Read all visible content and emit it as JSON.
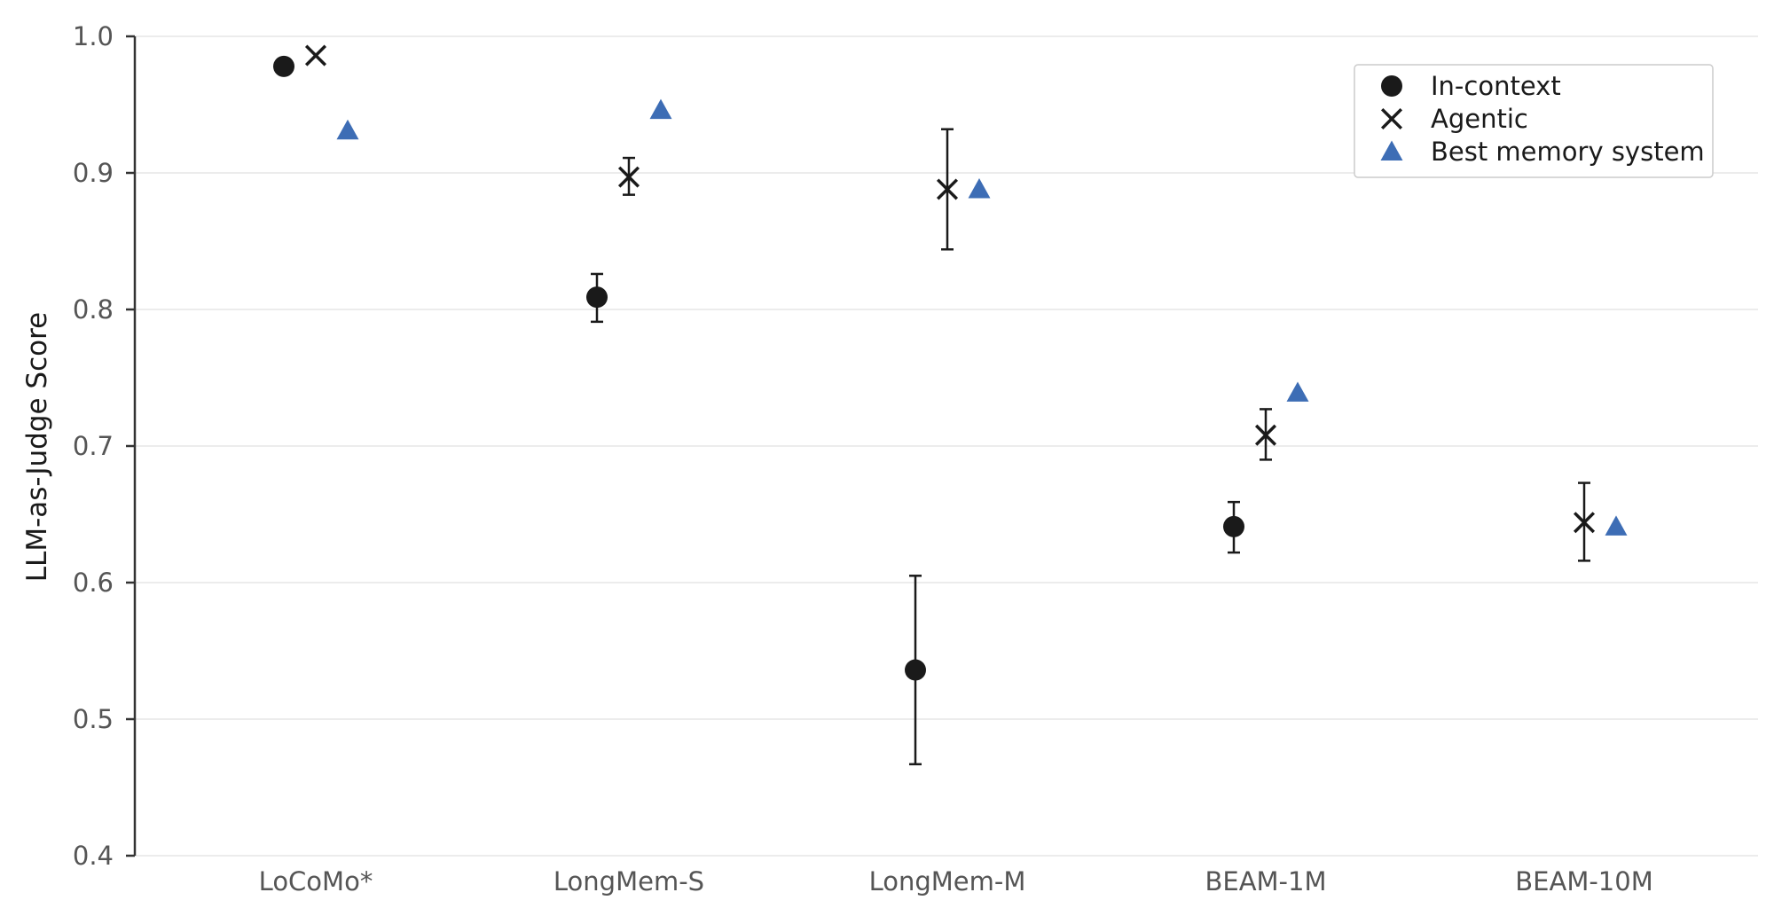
{
  "chart_data": {
    "type": "scatter",
    "title": "",
    "xlabel": "",
    "ylabel": "LLM-as-Judge Score",
    "ylim": [
      0.4,
      1.0
    ],
    "yticks": [
      0.4,
      0.5,
      0.6,
      0.7,
      0.8,
      0.9,
      1.0
    ],
    "ytick_labels": [
      "0.4",
      "0.5",
      "0.6",
      "0.7",
      "0.8",
      "0.9",
      "1.0"
    ],
    "categories": [
      "LoCoMo*",
      "LongMem-S",
      "LongMem-M",
      "BEAM-1M",
      "BEAM-10M"
    ],
    "grid": "horizontal",
    "legend_position": "top-right",
    "series": [
      {
        "name": "In-context",
        "marker": "circle",
        "color": "#1a1a1a",
        "values": [
          0.978,
          0.809,
          0.536,
          0.641,
          null
        ],
        "error_low": [
          null,
          0.791,
          0.467,
          0.622,
          null
        ],
        "error_high": [
          null,
          0.826,
          0.605,
          0.659,
          null
        ]
      },
      {
        "name": "Agentic",
        "marker": "x",
        "color": "#1a1a1a",
        "values": [
          0.986,
          0.897,
          0.888,
          0.708,
          0.644
        ],
        "error_low": [
          null,
          0.884,
          0.844,
          0.69,
          0.616
        ],
        "error_high": [
          null,
          0.911,
          0.932,
          0.727,
          0.673
        ]
      },
      {
        "name": "Best memory system",
        "marker": "triangle",
        "color": "#3d6db5",
        "values": [
          0.931,
          0.946,
          0.888,
          0.739,
          0.641
        ],
        "error_low": [
          null,
          null,
          null,
          null,
          null
        ],
        "error_high": [
          null,
          null,
          null,
          null,
          null
        ]
      }
    ]
  }
}
